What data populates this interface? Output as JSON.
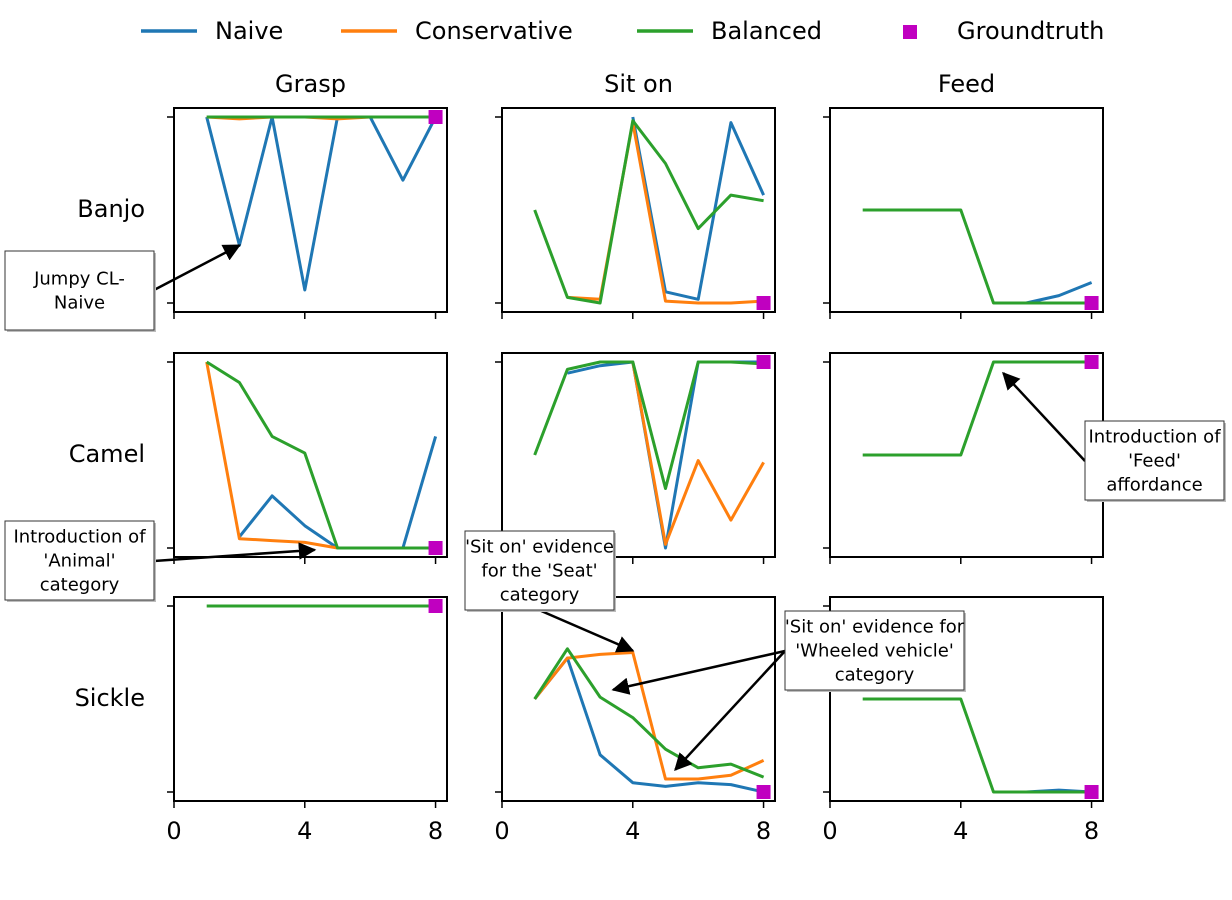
{
  "legend": {
    "items": [
      {
        "label": "Naive",
        "kind": "line",
        "color": "#1f77b4"
      },
      {
        "label": "Conservative",
        "kind": "line",
        "color": "#ff7f0e"
      },
      {
        "label": "Balanced",
        "kind": "line",
        "color": "#2ca02c"
      },
      {
        "label": "Groundtruth",
        "kind": "square",
        "color": "#c000c0"
      }
    ]
  },
  "chart_data": {
    "type": "line",
    "grid": false,
    "legend_position": "top",
    "x_ticks": [
      0,
      4,
      8
    ],
    "xlim": [
      0,
      8.35
    ],
    "ylim": [
      0,
      1
    ],
    "columns": [
      "Grasp",
      "Sit on",
      "Feed"
    ],
    "rows": [
      "Banjo",
      "Camel",
      "Sickle"
    ],
    "series_names": [
      "Naive",
      "Conservative",
      "Balanced"
    ],
    "panels": [
      {
        "row": "Banjo",
        "column": "Grasp",
        "x": [
          1,
          2,
          3,
          4,
          5,
          6,
          7,
          8
        ],
        "series": [
          {
            "name": "Naive",
            "values": [
              1.0,
              0.31,
              1.0,
              0.07,
              1.0,
              1.0,
              0.66,
              1.0
            ]
          },
          {
            "name": "Conservative",
            "values": [
              1.0,
              0.99,
              1.0,
              1.0,
              0.99,
              1.0,
              1.0,
              1.0
            ]
          },
          {
            "name": "Balanced",
            "values": [
              1.0,
              1.0,
              1.0,
              1.0,
              1.0,
              1.0,
              1.0,
              1.0
            ]
          }
        ],
        "groundtruth": {
          "x": 8,
          "y": 1.0
        }
      },
      {
        "row": "Banjo",
        "column": "Sit on",
        "x": [
          1,
          2,
          3,
          4,
          5,
          6,
          7,
          8
        ],
        "series": [
          {
            "name": "Naive",
            "values": [
              null,
              null,
              null,
              1.0,
              0.06,
              0.02,
              0.97,
              0.58
            ]
          },
          {
            "name": "Conservative",
            "values": [
              null,
              0.03,
              0.02,
              0.97,
              0.01,
              0.0,
              0.0,
              0.01
            ]
          },
          {
            "name": "Balanced",
            "values": [
              0.5,
              0.03,
              0.0,
              0.98,
              0.75,
              0.4,
              0.58,
              0.55
            ]
          }
        ],
        "groundtruth": {
          "x": 8,
          "y": 0.0
        }
      },
      {
        "row": "Banjo",
        "column": "Feed",
        "x": [
          1,
          2,
          3,
          4,
          5,
          6,
          7,
          8
        ],
        "series": [
          {
            "name": "Naive",
            "values": [
              null,
              null,
              null,
              null,
              null,
              0.0,
              0.04,
              0.11
            ]
          },
          {
            "name": "Conservative",
            "values": [
              null,
              null,
              null,
              null,
              null,
              null,
              null,
              null
            ]
          },
          {
            "name": "Balanced",
            "values": [
              0.5,
              0.5,
              0.5,
              0.5,
              0.0,
              0.0,
              0.0,
              0.0
            ]
          }
        ],
        "groundtruth": {
          "x": 8,
          "y": 0.0
        }
      },
      {
        "row": "Camel",
        "column": "Grasp",
        "x": [
          1,
          2,
          3,
          4,
          5,
          6,
          7,
          8
        ],
        "series": [
          {
            "name": "Naive",
            "values": [
              null,
              0.06,
              0.28,
              0.12,
              0.0,
              0.0,
              0.0,
              0.6
            ]
          },
          {
            "name": "Conservative",
            "values": [
              1.0,
              0.05,
              0.04,
              0.03,
              0.0,
              0.0,
              0.0,
              0.0
            ]
          },
          {
            "name": "Balanced",
            "values": [
              1.0,
              0.89,
              0.6,
              0.51,
              0.0,
              0.0,
              0.0,
              0.0
            ]
          }
        ],
        "groundtruth": {
          "x": 8,
          "y": 0.0
        }
      },
      {
        "row": "Camel",
        "column": "Sit on",
        "x": [
          1,
          2,
          3,
          4,
          5,
          6,
          7,
          8
        ],
        "series": [
          {
            "name": "Naive",
            "values": [
              null,
              0.94,
              0.98,
              1.0,
              0.0,
              1.0,
              1.0,
              1.0
            ]
          },
          {
            "name": "Conservative",
            "values": [
              null,
              null,
              null,
              1.0,
              0.02,
              0.47,
              0.15,
              0.46
            ]
          },
          {
            "name": "Balanced",
            "values": [
              0.5,
              0.96,
              1.0,
              1.0,
              0.32,
              1.0,
              1.0,
              0.99
            ]
          }
        ],
        "groundtruth": {
          "x": 8,
          "y": 1.0
        }
      },
      {
        "row": "Camel",
        "column": "Feed",
        "x": [
          1,
          2,
          3,
          4,
          5,
          6,
          7,
          8
        ],
        "series": [
          {
            "name": "Naive",
            "values": [
              null,
              null,
              null,
              null,
              null,
              null,
              null,
              null
            ]
          },
          {
            "name": "Conservative",
            "values": [
              null,
              null,
              null,
              null,
              null,
              null,
              null,
              null
            ]
          },
          {
            "name": "Balanced",
            "values": [
              0.5,
              0.5,
              0.5,
              0.5,
              1.0,
              1.0,
              1.0,
              1.0
            ]
          }
        ],
        "groundtruth": {
          "x": 8,
          "y": 1.0
        }
      },
      {
        "row": "Sickle",
        "column": "Grasp",
        "x": [
          1,
          2,
          3,
          4,
          5,
          6,
          7,
          8
        ],
        "series": [
          {
            "name": "Naive",
            "values": [
              null,
              null,
              null,
              null,
              null,
              null,
              null,
              null
            ]
          },
          {
            "name": "Conservative",
            "values": [
              null,
              null,
              null,
              null,
              null,
              null,
              null,
              null
            ]
          },
          {
            "name": "Balanced",
            "values": [
              1.0,
              1.0,
              1.0,
              1.0,
              1.0,
              1.0,
              1.0,
              1.0
            ]
          }
        ],
        "groundtruth": {
          "x": 8,
          "y": 1.0
        }
      },
      {
        "row": "Sickle",
        "column": "Sit on",
        "x": [
          1,
          2,
          3,
          4,
          5,
          6,
          7,
          8
        ],
        "series": [
          {
            "name": "Naive",
            "values": [
              0.5,
              0.72,
              0.2,
              0.05,
              0.03,
              0.05,
              0.04,
              0.0
            ]
          },
          {
            "name": "Conservative",
            "values": [
              0.5,
              0.72,
              0.74,
              0.75,
              0.07,
              0.07,
              0.09,
              0.17
            ]
          },
          {
            "name": "Balanced",
            "values": [
              0.5,
              0.77,
              0.51,
              0.4,
              0.23,
              0.13,
              0.15,
              0.08
            ]
          }
        ],
        "groundtruth": {
          "x": 8,
          "y": 0.0
        }
      },
      {
        "row": "Sickle",
        "column": "Feed",
        "x": [
          1,
          2,
          3,
          4,
          5,
          6,
          7,
          8
        ],
        "series": [
          {
            "name": "Naive",
            "values": [
              null,
              null,
              null,
              null,
              null,
              0.0,
              0.01,
              0.0
            ]
          },
          {
            "name": "Conservative",
            "values": [
              null,
              null,
              null,
              null,
              null,
              null,
              null,
              null
            ]
          },
          {
            "name": "Balanced",
            "values": [
              0.5,
              0.5,
              0.5,
              0.5,
              0.0,
              0.0,
              0.0,
              0.0
            ]
          }
        ],
        "groundtruth": {
          "x": 8,
          "y": 0.0
        }
      }
    ],
    "annotations": [
      {
        "id": "jumpy",
        "lines": [
          "Jumpy CL-",
          "Naive"
        ],
        "row": "Banjo",
        "column": "Grasp",
        "target": {
          "x": 2,
          "y": 0.31
        }
      },
      {
        "id": "animal",
        "lines": [
          "Introduction of",
          "'Animal'",
          "category"
        ],
        "row": "Camel",
        "column": "Grasp",
        "target": {
          "x": 4.3,
          "y": -0.01
        }
      },
      {
        "id": "seat",
        "lines": [
          "'Sit on' evidence",
          "for the 'Seat'",
          "category"
        ],
        "row": "Sickle",
        "column": "Sit on",
        "target": {
          "x": 4,
          "y": 0.76
        }
      },
      {
        "id": "wheeled",
        "lines": [
          "'Sit on' evidence for",
          "'Wheeled vehicle'",
          "category"
        ],
        "row": "Sickle",
        "column": "Sit on",
        "targets": [
          {
            "x": 3.4,
            "y": 0.55
          },
          {
            "x": 5.3,
            "y": 0.12
          }
        ]
      },
      {
        "id": "feed",
        "lines": [
          "Introduction of",
          "'Feed'",
          "affordance"
        ],
        "row": "Camel",
        "column": "Feed",
        "target": {
          "x": 5.3,
          "y": 0.94
        }
      }
    ]
  }
}
